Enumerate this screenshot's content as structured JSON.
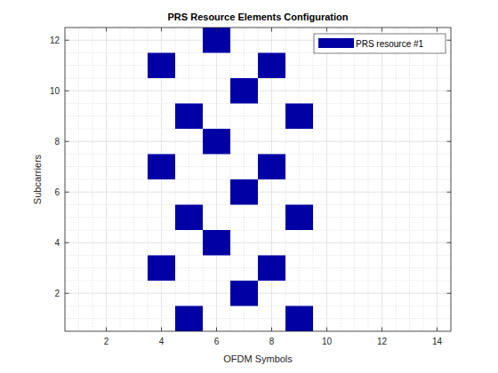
{
  "chart_data": {
    "type": "scatter",
    "title": "PRS Resource Elements Configuration",
    "x_label": "OFDM Symbols",
    "y_label": "Subcarriers",
    "marker": "square",
    "series": [
      {
        "name": "PRS resource #1",
        "color": "#0000a4",
        "x": [
          5,
          9,
          7,
          4,
          8,
          6,
          5,
          9,
          7,
          4,
          8,
          6,
          5,
          9,
          7,
          4,
          8,
          6
        ],
        "values": [
          1,
          1,
          2,
          3,
          3,
          4,
          5,
          5,
          6,
          7,
          7,
          8,
          9,
          9,
          10,
          11,
          11,
          12
        ]
      }
    ],
    "xlim": [
      0.5,
      14.5
    ],
    "xticks": [
      2,
      4,
      6,
      8,
      10,
      12,
      14
    ],
    "ylim": [
      0.5,
      12.5
    ],
    "yticks": [
      2,
      4,
      6,
      8,
      10,
      12
    ],
    "grid": true,
    "legend": "northeast"
  }
}
